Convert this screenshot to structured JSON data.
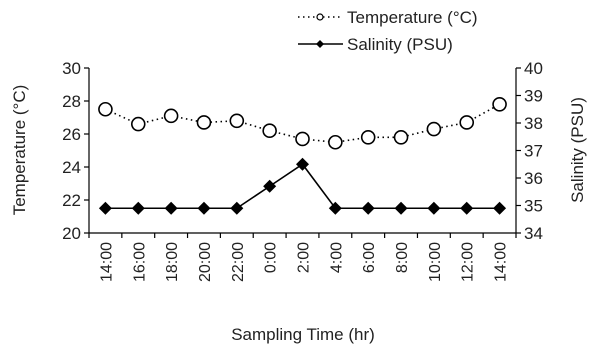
{
  "chart_data": {
    "type": "line",
    "x_label": "Sampling Time (hr)",
    "y_left_label": "Temperature (°C)",
    "y_right_label": "Salinity (PSU)",
    "categories": [
      "14:00",
      "16:00",
      "18:00",
      "20:00",
      "22:00",
      "0:00",
      "2:00",
      "4:00",
      "6:00",
      "8:00",
      "10:00",
      "12:00",
      "14:00"
    ],
    "y_left_range": [
      20,
      30
    ],
    "y_left_ticks": [
      20,
      22,
      24,
      26,
      28,
      30
    ],
    "y_right_range": [
      34,
      40
    ],
    "y_right_ticks": [
      34,
      35,
      36,
      37,
      38,
      39,
      40
    ],
    "grid": false,
    "legend_position": "top-right",
    "series": [
      {
        "name": "Temperature (°C)",
        "axis": "left",
        "style": "dotted",
        "marker": "open-circle",
        "color": "#000000",
        "values": [
          27.5,
          26.6,
          27.1,
          26.7,
          26.8,
          26.2,
          25.7,
          25.5,
          25.8,
          25.8,
          26.3,
          26.7,
          27.8
        ]
      },
      {
        "name": "Salinity (PSU)",
        "axis": "right",
        "style": "solid",
        "marker": "filled-diamond",
        "color": "#000000",
        "values": [
          34.9,
          34.9,
          34.9,
          34.9,
          34.9,
          35.7,
          36.5,
          34.9,
          34.9,
          34.9,
          34.9,
          34.9,
          34.9
        ]
      }
    ]
  }
}
